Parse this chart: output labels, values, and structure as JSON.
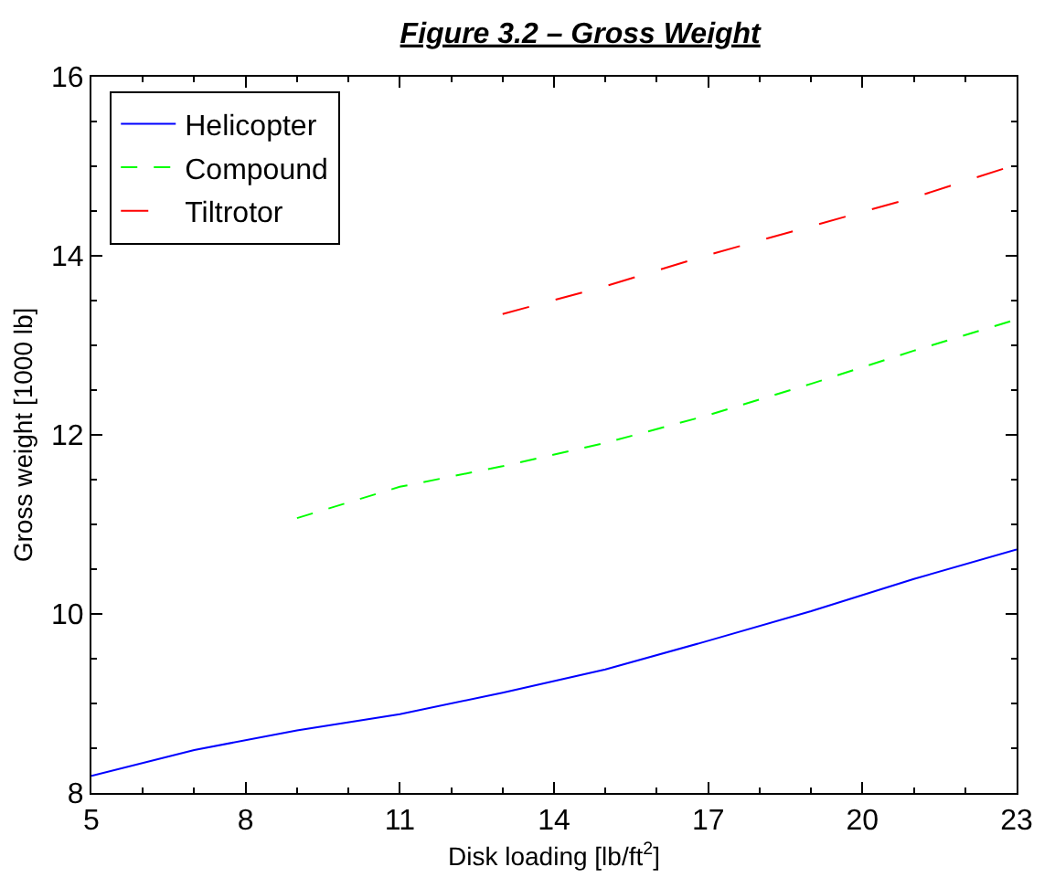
{
  "chart_data": {
    "type": "line",
    "title": "Figure 3.2 – Gross Weight",
    "xlabel": "Disk loading [lb/ft$^{2}$]",
    "ylabel": "Gross weight [1000 lb]",
    "xlim": [
      5,
      23
    ],
    "xticks": [
      5,
      8,
      11,
      14,
      17,
      20,
      23
    ],
    "ylim": [
      8,
      16
    ],
    "yticks": [
      8,
      10,
      12,
      14,
      16
    ],
    "grid": false,
    "legend": "top left",
    "series": [
      {
        "name": "Helicopter",
        "color": "#0000ff",
        "line_style": "solid",
        "x": [
          5,
          7,
          9,
          11,
          13,
          15,
          17,
          19,
          21,
          23
        ],
        "values": [
          8.19,
          8.48,
          8.7,
          8.88,
          9.12,
          9.38,
          9.7,
          10.03,
          10.39,
          10.72
        ]
      },
      {
        "name": "Compound",
        "color": "#00ff00",
        "line_style": "dashed",
        "x": [
          9,
          11,
          13,
          15,
          17,
          19,
          21,
          23
        ],
        "values": [
          11.07,
          11.42,
          11.65,
          11.91,
          12.22,
          12.57,
          12.94,
          13.29
        ]
      },
      {
        "name": "Tiltrotor",
        "color": "#ff0000",
        "line_style": "longdash",
        "x": [
          13,
          15,
          17,
          19,
          21,
          23
        ],
        "values": [
          13.35,
          13.66,
          14.01,
          14.33,
          14.65,
          15.02
        ]
      }
    ]
  }
}
